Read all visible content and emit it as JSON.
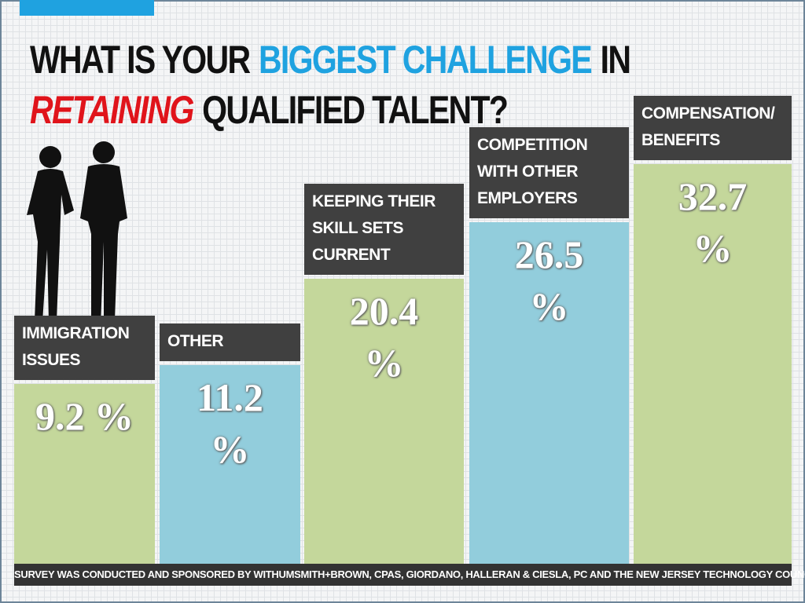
{
  "chart_data": {
    "type": "bar",
    "title_parts": [
      {
        "text": "WHAT IS YOUR",
        "color": "#111111"
      },
      {
        "text": "BIGGEST CHALLENGE",
        "color": "#1fa2e0"
      },
      {
        "text": "IN",
        "color": "#111111"
      },
      {
        "text": "RETAINING",
        "color": "#e0141b",
        "italic": true
      },
      {
        "text": "QUALIFIED TALENT?",
        "color": "#111111"
      }
    ],
    "categories": [
      "IMMIGRATION ISSUES",
      "OTHER",
      "KEEPING THEIR SKILL SETS CURRENT",
      "COMPETITION WITH OTHER EMPLOYERS",
      "COMPENSATION/ BENEFITS"
    ],
    "values": [
      9.2,
      11.2,
      20.4,
      26.5,
      32.7
    ],
    "value_labels": [
      "9.2 %",
      "11.2 %",
      "20.4 %",
      "26.5 %",
      "32.7 %"
    ],
    "colors": [
      "#c4d79b",
      "#92cddc",
      "#c4d79b",
      "#92cddc",
      "#c4d79b"
    ],
    "footnote": "SURVEY WAS CONDUCTED AND SPONSORED BY WITHUMSMITH+BROWN, CPAS, GIORDANO, HALLERAN & CIESLA, PC AND THE NEW JERSEY TECHNOLOGY COUNCIL."
  }
}
